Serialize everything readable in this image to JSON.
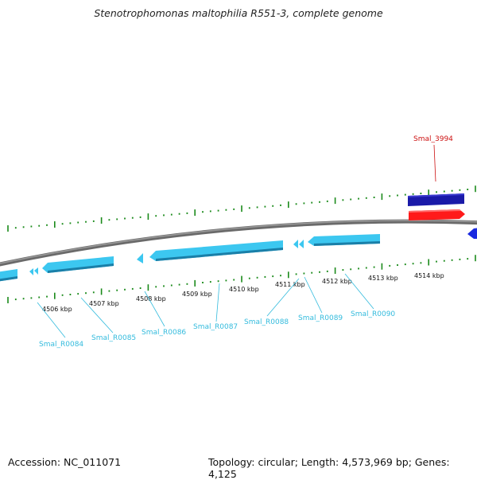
{
  "title": "Stenotrophomonas maltophilia R551-3, complete genome",
  "footer": {
    "accession": "Accession: NC_011071",
    "summary": "Topology: circular; Length: 4,573,969 bp; Genes: 4,125"
  },
  "colors": {
    "forward_gene": "#1a1aa8",
    "forward_cds": "#ff1a1a",
    "reverse_cds": "#3cc7f0",
    "tick": "#1a8a1a",
    "backbone": "#808080",
    "forward_label": "#cc1111",
    "reverse_label": "#33bbdd"
  },
  "scale_labels": [
    "4506 kbp",
    "4507 kbp",
    "4508 kbp",
    "4509 kbp",
    "4510 kbp",
    "4511 kbp",
    "4512 kbp",
    "4513 kbp",
    "4514 kbp"
  ],
  "gene_labels": {
    "forward": [
      "Smal_3994"
    ],
    "reverse": [
      "Smal_R0084",
      "Smal_R0085",
      "Smal_R0086",
      "Smal_R0087",
      "Smal_R0088",
      "Smal_R0089",
      "Smal_R0090"
    ]
  }
}
